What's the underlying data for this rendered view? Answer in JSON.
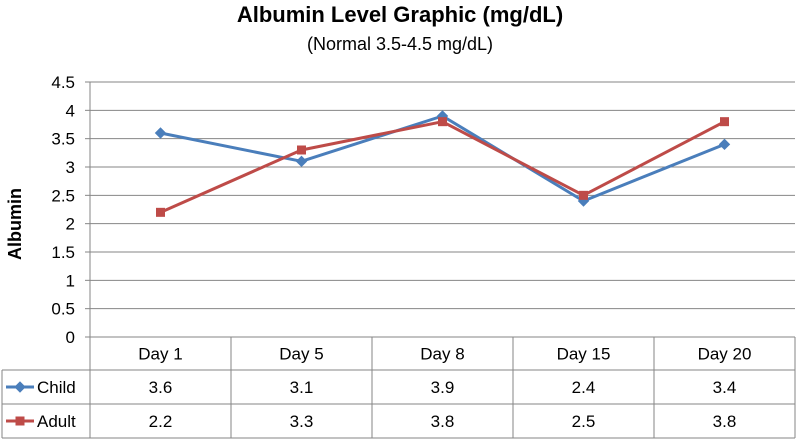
{
  "chart_data": {
    "type": "line",
    "title": "Albumin Level Graphic (mg/dL)",
    "subtitle": "(Normal 3.5-4.5 mg/dL)",
    "ylabel": "Albumin",
    "xlabel": "",
    "ylim": [
      0,
      4.5
    ],
    "yticks": [
      "0",
      "0.5",
      "1",
      "1.5",
      "2",
      "2.5",
      "3",
      "3.5",
      "4",
      "4.5"
    ],
    "categories": [
      "Day 1",
      "Day 5",
      "Day 8",
      "Day 15",
      "Day 20"
    ],
    "grid": true,
    "legend": "data-table",
    "series": [
      {
        "name": "Child",
        "color": "#4A7EBB",
        "marker": "diamond",
        "values": [
          3.6,
          3.1,
          3.9,
          2.4,
          3.4
        ],
        "labels": [
          "3.6",
          "3.1",
          "3.9",
          "2.4",
          "3.4"
        ]
      },
      {
        "name": "Adult",
        "color": "#BE4B48",
        "marker": "square",
        "values": [
          2.2,
          3.3,
          3.8,
          2.5,
          3.8
        ],
        "labels": [
          "2.2",
          "3.3",
          "3.8",
          "2.5",
          "3.8"
        ]
      }
    ]
  }
}
